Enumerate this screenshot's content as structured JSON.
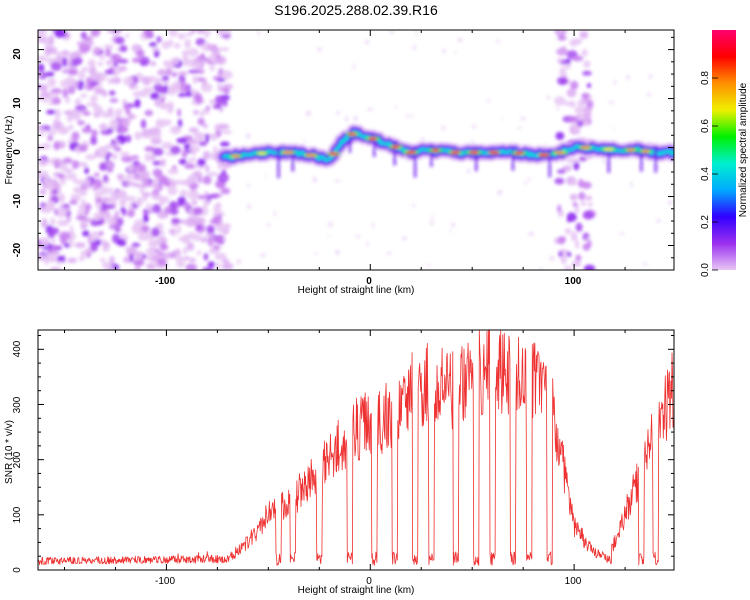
{
  "title": "S196.2025.288.02.39.R16",
  "chart_data": [
    {
      "type": "heatmap",
      "title": "S196.2025.288.02.39.R16",
      "xlabel": "Height of straight line (km)",
      "ylabel": "Frequency (Hz)",
      "xlim": [
        -163,
        149
      ],
      "ylim": [
        -25,
        24
      ],
      "xticks": [
        "-100",
        "0",
        "100"
      ],
      "yticks": [
        "20",
        "10",
        "0",
        "-10",
        "-20"
      ],
      "colorbar": {
        "label": "Normalized spectral amplitude",
        "range": [
          0,
          1
        ],
        "ticks": [
          "0.0",
          "0.2",
          "0.4",
          "0.6",
          "0.8"
        ],
        "colors": [
          "#e8c6f5",
          "#9b30f0",
          "#3000ff",
          "#00aaff",
          "#00f0d0",
          "#00f000",
          "#f0f000",
          "#ff9000",
          "#ff0000",
          "#ff0070"
        ]
      },
      "ridge": {
        "x": [
          -72,
          -60,
          -50,
          -40,
          -30,
          -20,
          -14,
          -8,
          0,
          10,
          20,
          30,
          40,
          50,
          60,
          70,
          80,
          90,
          100,
          110,
          120,
          130,
          140,
          149
        ],
        "freq": [
          -2,
          -1.5,
          -1,
          -1,
          -1.5,
          -2.5,
          1,
          3,
          2,
          0.5,
          -1,
          -0.5,
          -1,
          -1,
          -1,
          -1,
          -1.5,
          -1.5,
          0,
          0,
          -0.5,
          -0.5,
          -1,
          -1
        ]
      },
      "noise_regions_km": [
        [
          -163,
          -70
        ],
        [
          92,
          108
        ]
      ]
    },
    {
      "type": "line",
      "xlabel": "Height of straight line (km)",
      "ylabel": "SNR (10 * v/v)",
      "xlim": [
        -163,
        149
      ],
      "ylim": [
        0,
        435
      ],
      "xticks": [
        "-100",
        "0",
        "100"
      ],
      "yticks": [
        "0",
        "100",
        "200",
        "300",
        "400"
      ],
      "color": "#ee3030",
      "envelope": {
        "x": [
          -163,
          -70,
          -60,
          -50,
          -40,
          -30,
          -20,
          -10,
          0,
          10,
          20,
          30,
          40,
          50,
          60,
          70,
          80,
          90,
          95,
          100,
          110,
          115,
          120,
          130,
          140,
          149
        ],
        "snr": [
          16,
          20,
          50,
          100,
          120,
          160,
          200,
          250,
          260,
          280,
          320,
          340,
          330,
          350,
          370,
          360,
          340,
          280,
          180,
          80,
          30,
          25,
          50,
          150,
          250,
          320
        ]
      },
      "dips_km": [
        -45,
        -38,
        -25,
        -10,
        2,
        12,
        22,
        30,
        42,
        52,
        60,
        70,
        78,
        88,
        117,
        133,
        140
      ]
    }
  ]
}
